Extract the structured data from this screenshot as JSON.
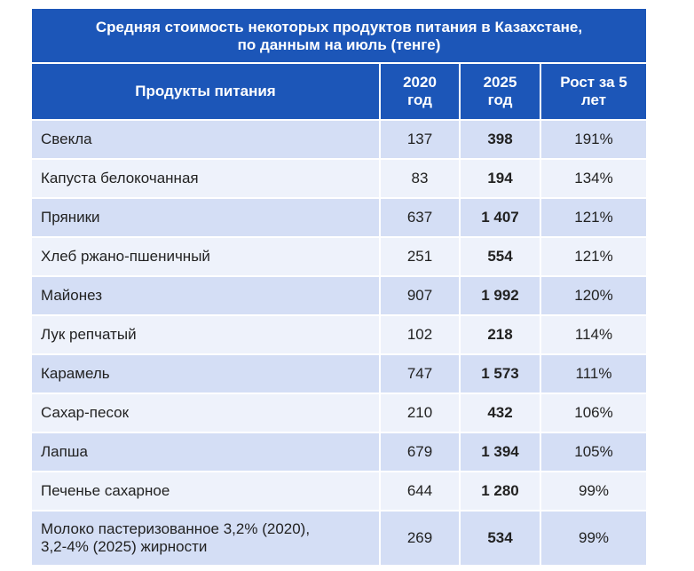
{
  "title_line1": "Средняя стоимость некоторых продуктов питания в Казахстане,",
  "title_line2": "по данным на июль (тенге)",
  "colors": {
    "header_bg": "#1c56b8",
    "row_odd": "#d4def5",
    "row_even": "#eef2fb"
  },
  "chart_data": {
    "type": "table",
    "title": "Средняя стоимость некоторых продуктов питания в Казахстане, по данным на июль (тенге)",
    "columns": [
      "Продукты питания",
      "2020 год",
      "2025 год",
      "Рост за 5 лет"
    ],
    "header": {
      "product": "Продукты питания",
      "y2020": "2020 год",
      "y2025": "2025 год",
      "growth": "Рост за 5 лет"
    },
    "rows": [
      {
        "product": "Свекла",
        "y2020": "137",
        "y2025": "398",
        "growth": "191%"
      },
      {
        "product": "Капуста белокочанная",
        "y2020": "83",
        "y2025": "194",
        "growth": "134%"
      },
      {
        "product": "Пряники",
        "y2020": "637",
        "y2025": "1 407",
        "growth": "121%"
      },
      {
        "product": "Хлеб ржано-пшеничный",
        "y2020": "251",
        "y2025": "554",
        "growth": "121%"
      },
      {
        "product": "Майонез",
        "y2020": "907",
        "y2025": "1 992",
        "growth": "120%"
      },
      {
        "product": "Лук репчатый",
        "y2020": "102",
        "y2025": "218",
        "growth": "114%"
      },
      {
        "product": "Карамель",
        "y2020": "747",
        "y2025": "1 573",
        "growth": "111%"
      },
      {
        "product": "Сахар-песок",
        "y2020": "210",
        "y2025": "432",
        "growth": "106%"
      },
      {
        "product": "Лапша",
        "y2020": "679",
        "y2025": "1 394",
        "growth": "105%"
      },
      {
        "product": "Печенье сахарное",
        "y2020": "644",
        "y2025": "1 280",
        "growth": "99%"
      },
      {
        "product_line1": "Молоко пастеризованное 3,2% (2020),",
        "product_line2": "3,2-4% (2025) жирности",
        "y2020": "269",
        "y2025": "534",
        "growth": "99%"
      }
    ]
  }
}
